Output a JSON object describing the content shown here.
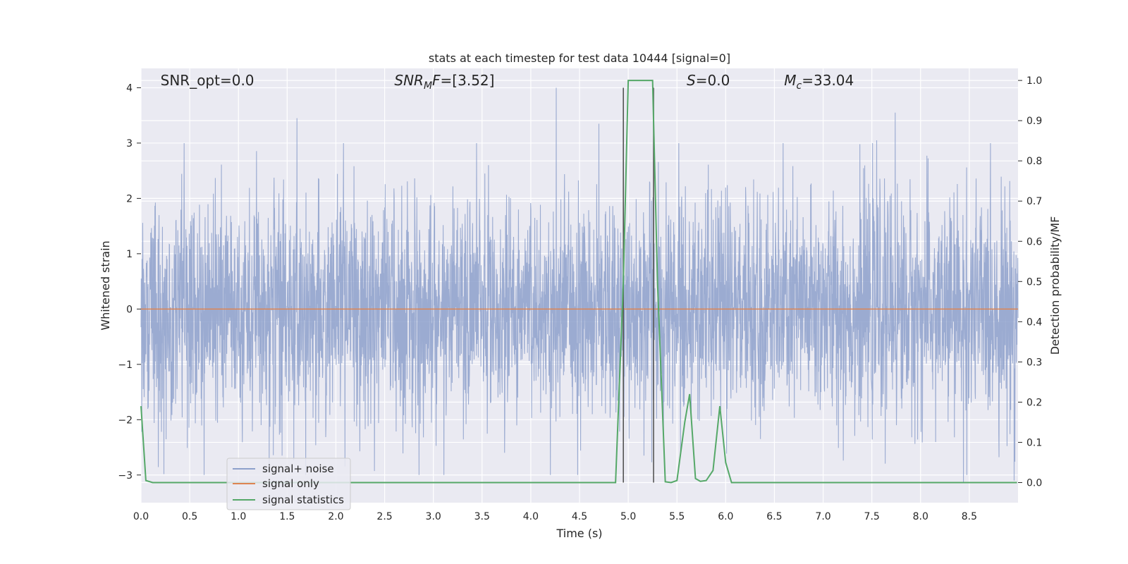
{
  "chart_data": {
    "type": "line",
    "title": "stats at each timestep for test data 10444 [signal=0]",
    "xlabel": "Time (s)",
    "ylabel": "Whitened strain",
    "ylabel_right": "Detection probability/MF",
    "xlim": [
      0.0,
      9.0
    ],
    "ylim_left": [
      -3.5,
      4.35
    ],
    "ylim_right": [
      -0.05,
      1.03
    ],
    "x_ticks": [
      "0.0",
      "0.5",
      "1.0",
      "1.5",
      "2.0",
      "2.5",
      "3.0",
      "3.5",
      "4.0",
      "4.5",
      "5.0",
      "5.5",
      "6.0",
      "6.5",
      "7.0",
      "7.5",
      "8.0",
      "8.5"
    ],
    "y_ticks_left": [
      "4",
      "3",
      "2",
      "1",
      "0",
      "−1",
      "−2",
      "−3"
    ],
    "y_ticks_right": [
      "1.0",
      "0.9",
      "0.8",
      "0.7",
      "0.6",
      "0.5",
      "0.4",
      "0.3",
      "0.2",
      "0.1",
      "0.0"
    ],
    "grid": true,
    "annotations": [
      {
        "text": "SNR_opt=0.0",
        "x": 0.2
      },
      {
        "text": "SNR_MF=[3.52]",
        "x": 2.6
      },
      {
        "text": "S=0.0",
        "x": 5.6
      },
      {
        "text": "M_c=33.04",
        "x": 6.6
      }
    ],
    "vertical_lines": [
      4.95,
      5.26
    ],
    "legend": {
      "position": "lower-left",
      "entries": [
        "signal+ noise",
        "signal only",
        "signal statistics"
      ]
    },
    "series": [
      {
        "name": "signal+ noise",
        "axis": "left",
        "style": "noise",
        "approx_amplitude_std": 1.0,
        "notable_peaks": [
          {
            "x": 1.6,
            "y": 3.45
          },
          {
            "x": 4.26,
            "y": 4.0
          },
          {
            "x": 4.7,
            "y": 3.35
          },
          {
            "x": 7.74,
            "y": 3.55
          },
          {
            "x": 7.55,
            "y": 3.05
          },
          {
            "x": 8.44,
            "y": -3.15
          },
          {
            "x": 8.96,
            "y": -3.1
          }
        ]
      },
      {
        "name": "signal only",
        "axis": "left",
        "x": [
          0.0,
          9.0
        ],
        "y": [
          0.0,
          0.0
        ]
      },
      {
        "name": "signal statistics",
        "axis": "right",
        "x": [
          0.0,
          0.05,
          0.12,
          4.87,
          4.95,
          5.0,
          5.25,
          5.3,
          5.38,
          5.44,
          5.5,
          5.58,
          5.63,
          5.69,
          5.74,
          5.8,
          5.87,
          5.94,
          6.0,
          6.06,
          8.99
        ],
        "y": [
          0.19,
          0.005,
          0.0,
          0.0,
          0.5,
          1.0,
          1.0,
          0.5,
          0.002,
          0.0,
          0.005,
          0.15,
          0.22,
          0.01,
          0.003,
          0.005,
          0.03,
          0.19,
          0.05,
          0.0,
          0.0
        ]
      }
    ],
    "colors": {
      "noise": "#8da0cb",
      "signal": "#dd8452",
      "stats": "#55a868",
      "vline": "#555555",
      "background": "#eaeaf2",
      "grid": "#ffffff"
    }
  }
}
